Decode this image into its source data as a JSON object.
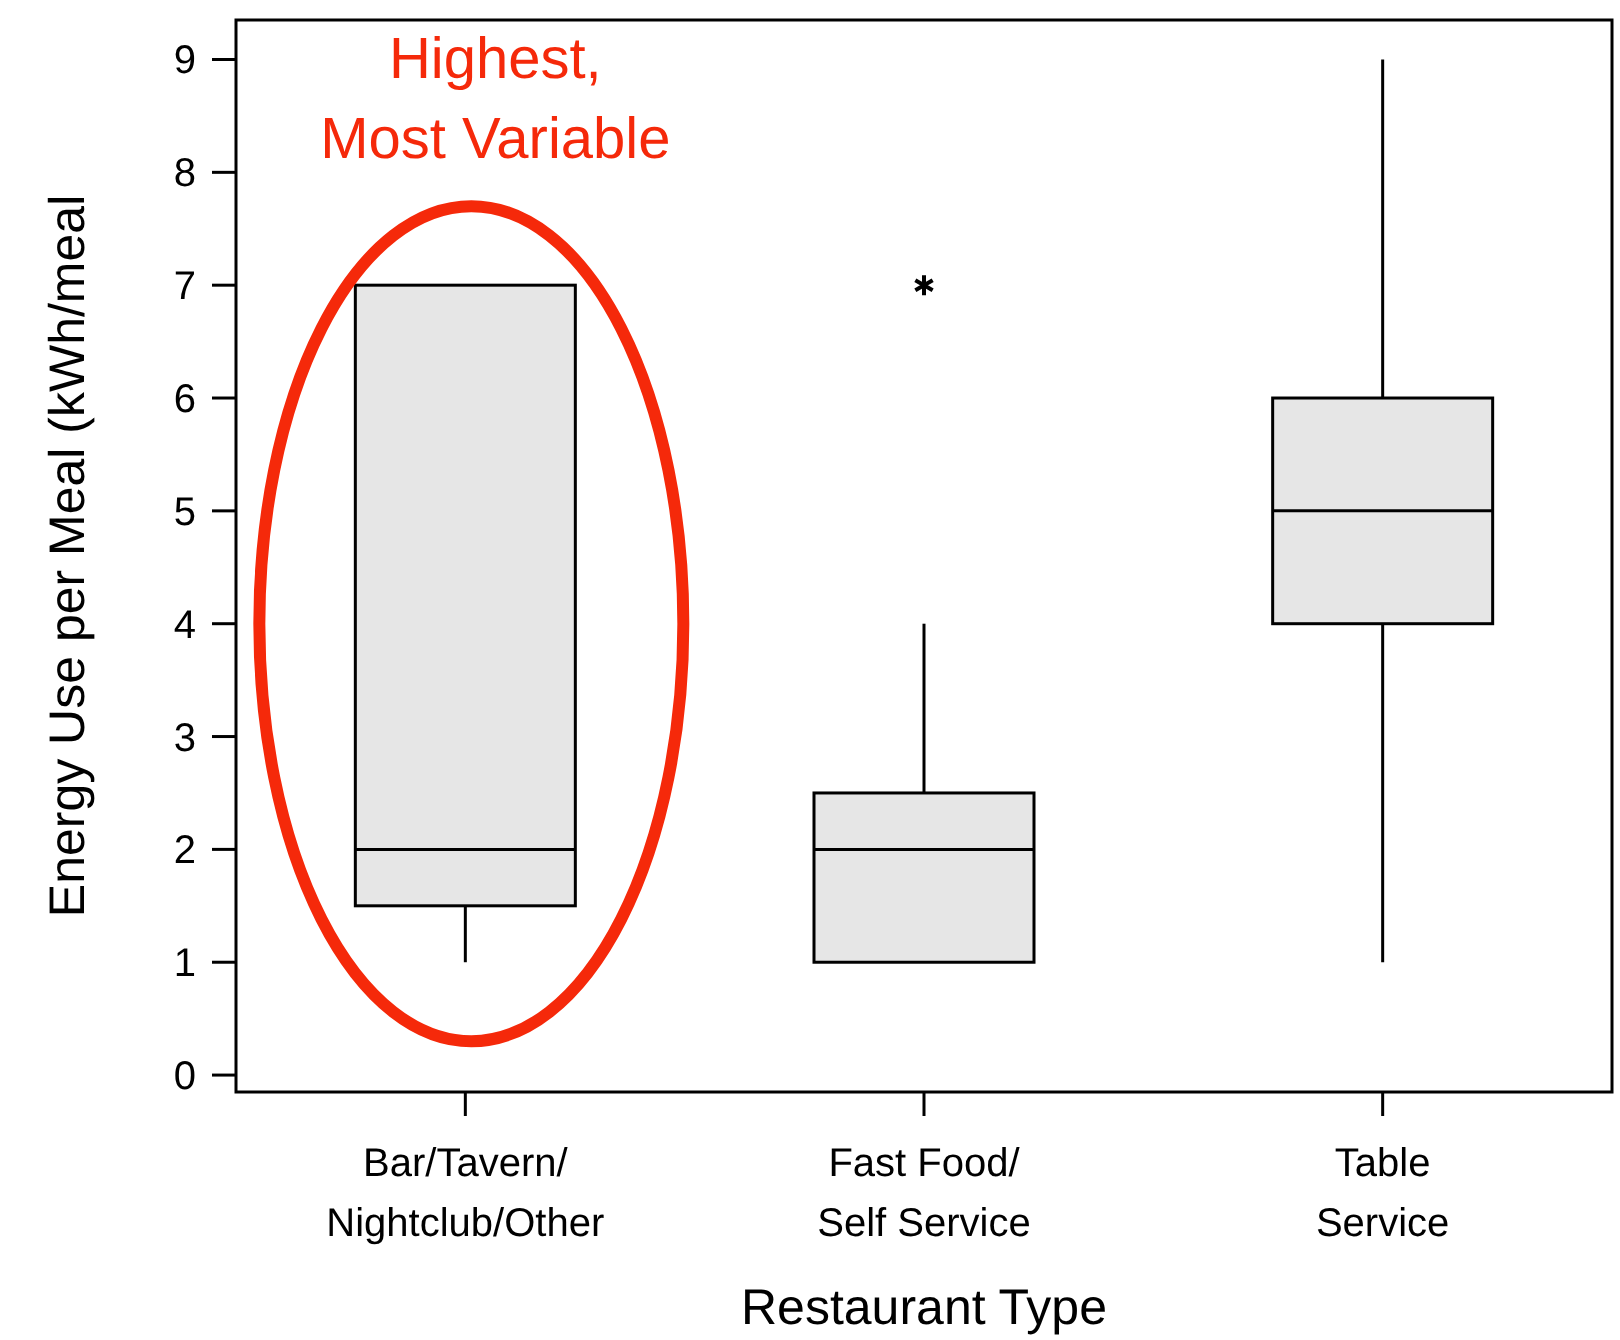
{
  "chart_data": {
    "type": "box",
    "xlabel": "Restaurant Type",
    "ylabel": "Energy Use per Meal (kWh/meal",
    "categories": [
      "Bar/Tavern/\nNightclub/Other",
      "Fast Food/\nSelf Service",
      "Table\nService"
    ],
    "boxes": [
      {
        "low": 1,
        "q1": 1.5,
        "median": 2,
        "q3": 7,
        "high": 7
      },
      {
        "low": 1,
        "q1": 1,
        "median": 2,
        "q3": 2.5,
        "high": 4,
        "outliers": [
          7
        ]
      },
      {
        "low": 1,
        "q1": 4,
        "median": 5,
        "q3": 6,
        "high": 9
      }
    ],
    "color": "#e6e6e6",
    "ylim": [
      -0.15,
      9.35
    ],
    "yticks": [
      0,
      1,
      2,
      3,
      4,
      5,
      6,
      7,
      8,
      9
    ],
    "annotations": [
      "Highest,\nMost Variable"
    ]
  }
}
